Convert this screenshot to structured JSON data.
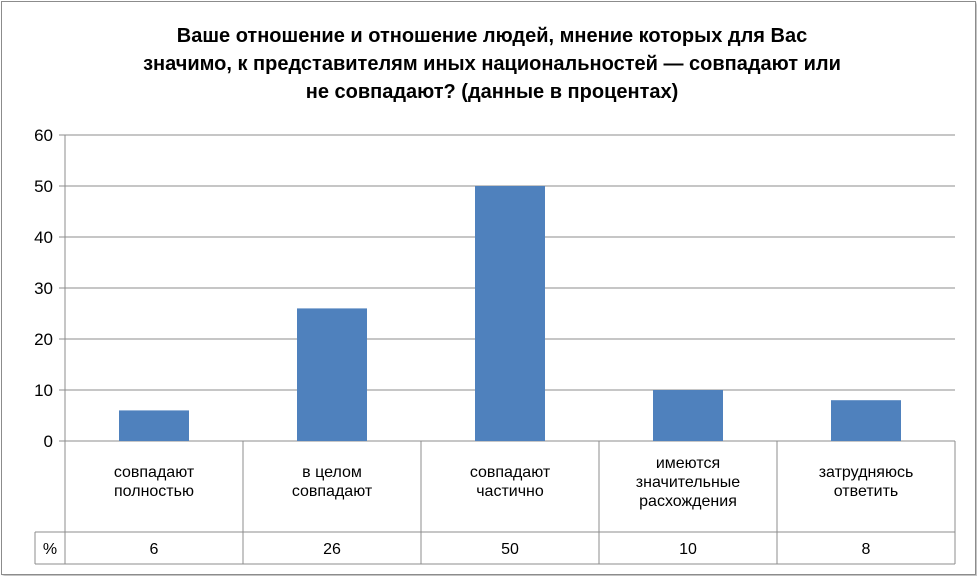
{
  "chart_data": {
    "type": "bar",
    "title": "Ваше отношение и отношение людей, мнение которых для Вас значимо, к представителям иных национальностей — совпадают или не совпадают? (данные в процентах)",
    "title_lines": [
      "Ваше отношение и отношение людей, мнение которых для Вас",
      "значимо, к представителям иных национальностей — совпадают или",
      "не совпадают? (данные в процентах)"
    ],
    "categories": [
      [
        "совпадают",
        "полностью"
      ],
      [
        "в целом",
        "совпадают"
      ],
      [
        "совпадают",
        "частично"
      ],
      [
        "имеются",
        "значительные",
        "расхождения"
      ],
      [
        "затрудняюсь",
        "ответить"
      ]
    ],
    "series": [
      {
        "name": "%",
        "values": [
          6,
          26,
          50,
          10,
          8
        ]
      }
    ],
    "table_labels": [
      "6",
      "26",
      "50",
      "10",
      "8"
    ],
    "ylim": [
      0,
      60
    ],
    "yticks": [
      0,
      10,
      20,
      30,
      40,
      50,
      60
    ],
    "grid": true,
    "legend": "data table",
    "bar_color": "#4f81bd"
  }
}
